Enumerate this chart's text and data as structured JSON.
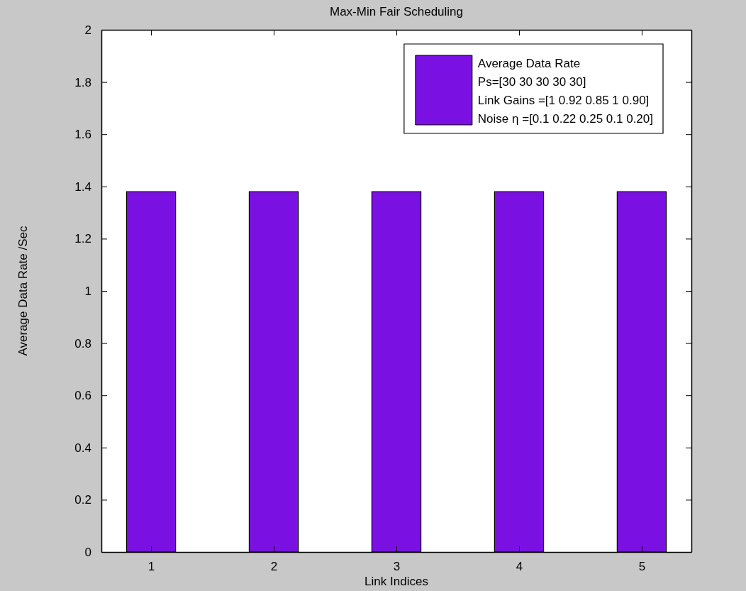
{
  "chart_data": {
    "type": "bar",
    "title": "Max-Min Fair Scheduling",
    "xlabel": "Link Indices",
    "ylabel": "Average Data Rate /Sec",
    "categories": [
      "1",
      "2",
      "3",
      "4",
      "5"
    ],
    "series": [
      {
        "name": "Average Data Rate",
        "color": "#7a10e2",
        "values": [
          1.38,
          1.38,
          1.38,
          1.38,
          1.38
        ]
      }
    ],
    "annotations": [
      "Ps=[30 30 30 30 30]",
      "Link Gains =[1 0.92 0.85 1 0.90]",
      "Noise η =[0.1 0.22 0.25 0.1 0.20]"
    ],
    "ylim": [
      0,
      2
    ],
    "yticks": [
      0,
      0.2,
      0.4,
      0.6,
      0.8,
      1,
      1.2,
      1.4,
      1.6,
      1.8,
      2
    ],
    "grid": false,
    "legend": "top right"
  }
}
